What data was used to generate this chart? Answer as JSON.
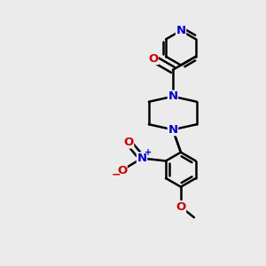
{
  "background_color": "#ebebeb",
  "bond_color": "#000000",
  "atom_colors": {
    "N": "#0000cc",
    "O": "#cc0000",
    "C": "#000000"
  },
  "bond_width": 1.8,
  "fig_width": 3.0,
  "fig_height": 3.0,
  "dpi": 100,
  "xlim": [
    0,
    10
  ],
  "ylim": [
    0,
    10
  ]
}
